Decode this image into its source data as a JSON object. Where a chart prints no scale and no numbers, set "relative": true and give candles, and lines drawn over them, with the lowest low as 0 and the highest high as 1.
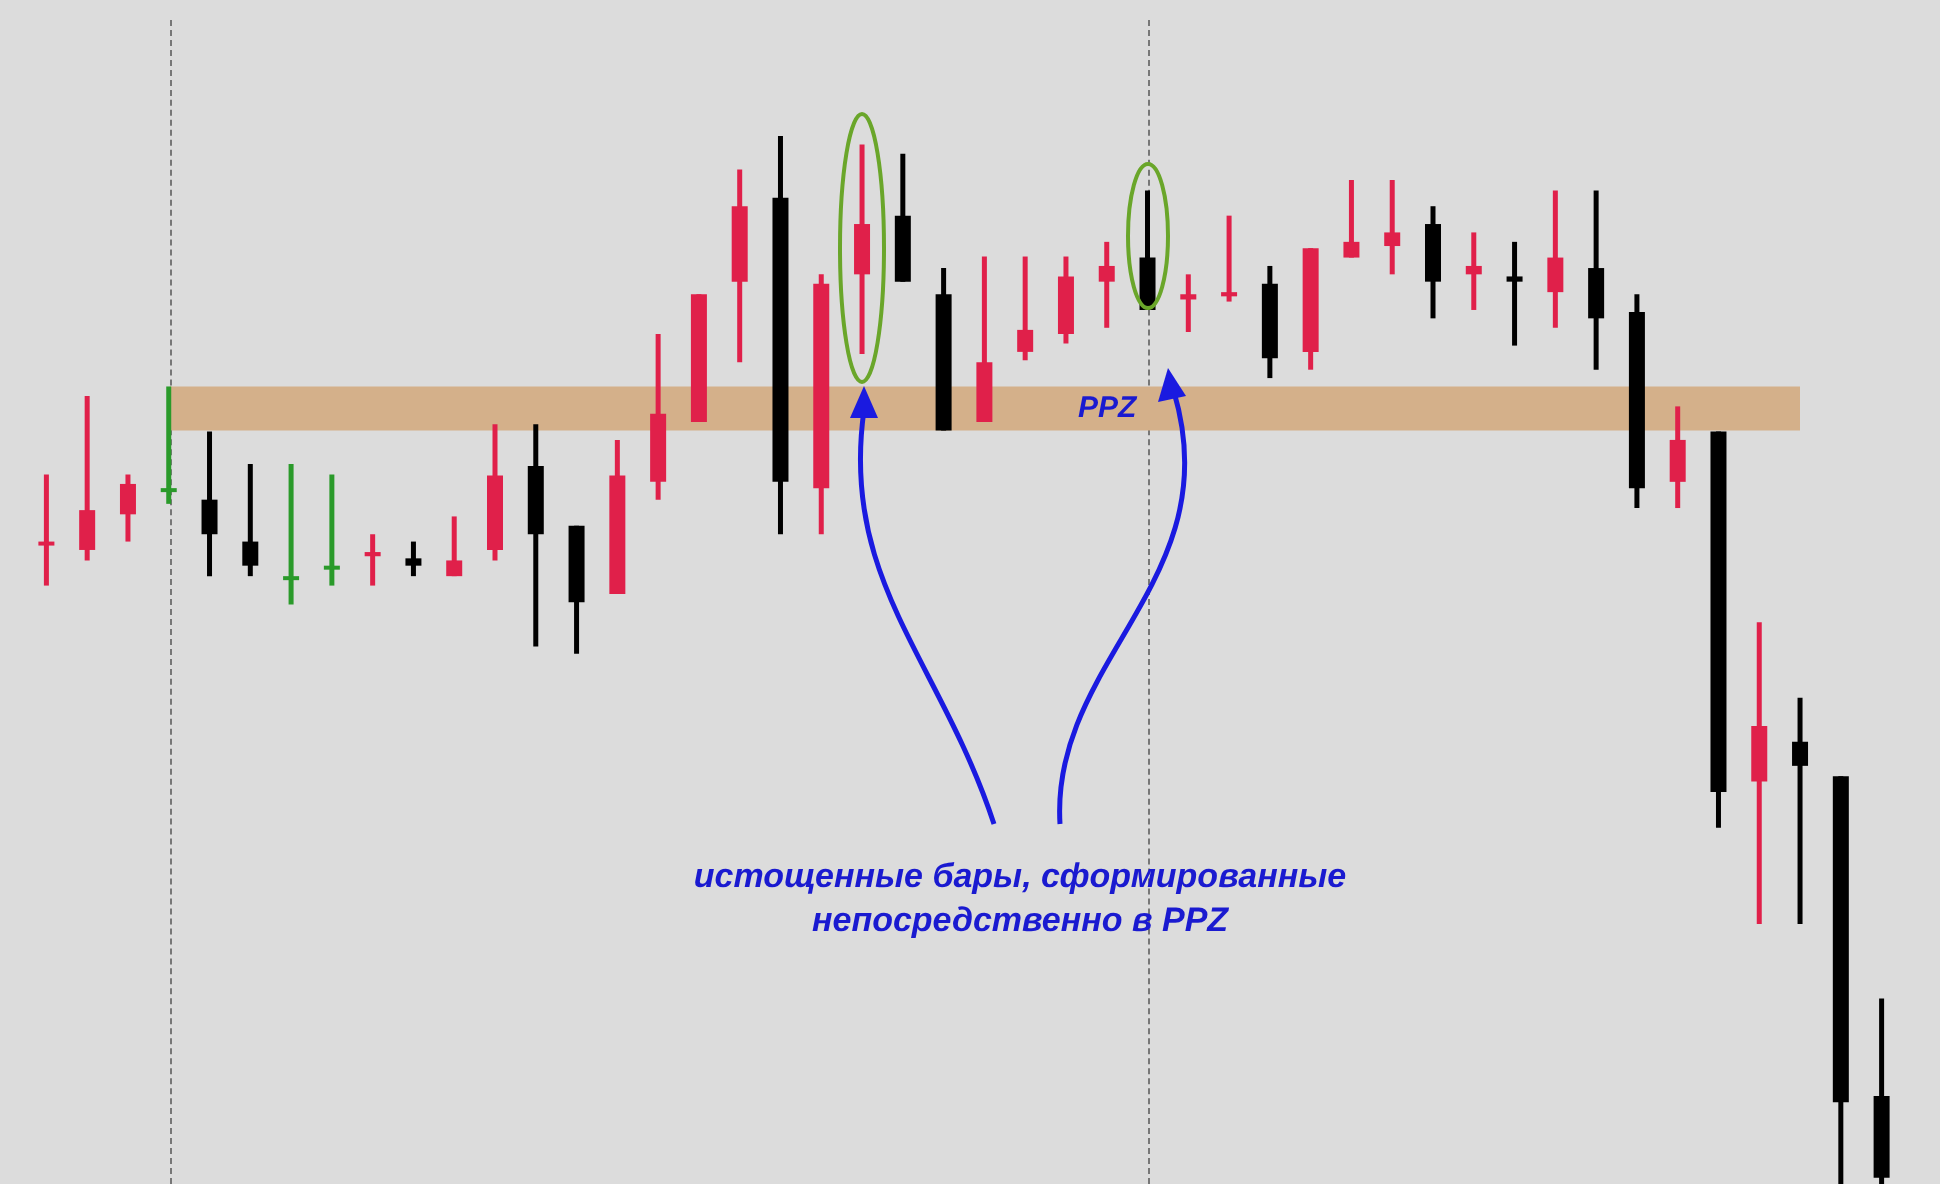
{
  "chart_data": {
    "type": "candlestick",
    "relative": true,
    "categories": [
      null,
      null,
      null,
      null,
      null,
      null,
      null,
      null,
      null,
      null,
      null,
      null,
      null,
      null,
      null,
      null,
      null,
      null,
      null,
      null,
      null,
      null,
      null,
      null,
      null,
      null,
      null,
      null,
      null,
      null,
      null,
      null,
      null,
      null,
      null,
      null,
      null,
      null,
      null,
      null,
      null,
      null,
      null,
      null,
      null,
      null
    ],
    "ohlc": [
      [
        0.611,
        0.677,
        0.571,
        0.613
      ],
      [
        0.605,
        0.752,
        0.595,
        0.643
      ],
      [
        0.639,
        0.677,
        0.613,
        0.668
      ],
      [
        0.664,
        0.761,
        0.649,
        0.664
      ],
      [
        0.653,
        0.718,
        0.58,
        0.62
      ],
      [
        0.613,
        0.687,
        0.58,
        0.59
      ],
      [
        0.58,
        0.687,
        0.553,
        0.58
      ],
      [
        0.59,
        0.677,
        0.571,
        0.59
      ],
      [
        0.599,
        0.62,
        0.571,
        0.603
      ],
      [
        0.597,
        0.613,
        0.58,
        0.59
      ],
      [
        0.58,
        0.637,
        0.58,
        0.595
      ],
      [
        0.605,
        0.725,
        0.595,
        0.676
      ],
      [
        0.685,
        0.725,
        0.513,
        0.62
      ],
      [
        0.628,
        0.628,
        0.506,
        0.555
      ],
      [
        0.563,
        0.71,
        0.563,
        0.676
      ],
      [
        0.67,
        0.811,
        0.653,
        0.735
      ],
      [
        0.727,
        0.849,
        0.727,
        0.849
      ],
      [
        0.861,
        0.968,
        0.784,
        0.933
      ],
      [
        0.941,
        1,
        0.62,
        0.67
      ],
      [
        0.664,
        0.868,
        0.62,
        0.859
      ],
      [
        0.868,
        0.992,
        0.792,
        0.916
      ],
      [
        0.924,
        0.983,
        0.861,
        0.861
      ],
      [
        0.849,
        0.874,
        0.719,
        0.719
      ],
      [
        0.727,
        0.885,
        0.727,
        0.784
      ],
      [
        0.794,
        0.885,
        0.786,
        0.815
      ],
      [
        0.811,
        0.885,
        0.802,
        0.866
      ],
      [
        0.861,
        0.899,
        0.817,
        0.876
      ],
      [
        0.884,
        0.948,
        0.834,
        0.834
      ],
      [
        0.844,
        0.868,
        0.813,
        0.849
      ],
      [
        0.847,
        0.924,
        0.842,
        0.851
      ],
      [
        0.859,
        0.876,
        0.769,
        0.788
      ],
      [
        0.794,
        0.893,
        0.777,
        0.893
      ],
      [
        0.884,
        0.958,
        0.884,
        0.899
      ],
      [
        0.895,
        0.958,
        0.868,
        0.908
      ],
      [
        0.916,
        0.933,
        0.826,
        0.861
      ],
      [
        0.868,
        0.908,
        0.834,
        0.876
      ],
      [
        0.866,
        0.899,
        0.8,
        0.861
      ],
      [
        0.851,
        0.948,
        0.817,
        0.884
      ],
      [
        0.874,
        0.948,
        0.777,
        0.826
      ],
      [
        0.832,
        0.849,
        0.645,
        0.664
      ],
      [
        0.67,
        0.742,
        0.645,
        0.71
      ],
      [
        0.718,
        0.718,
        0.34,
        0.374
      ],
      [
        0.384,
        0.536,
        0.248,
        0.437
      ],
      [
        0.422,
        0.464,
        0.248,
        0.399
      ],
      [
        0.389,
        0.389,
        0,
        0.078
      ],
      [
        0.084,
        0.177,
        0,
        0.006
      ]
    ],
    "colors": [
      "#e0204a",
      "#e0204a",
      "#e0204a",
      "#2a9a2a",
      "#000000",
      "#000000",
      "#2a9a2a",
      "#2a9a2a",
      "#e0204a",
      "#000000",
      "#e0204a",
      "#e0204a",
      "#000000",
      "#000000",
      "#e0204a",
      "#e0204a",
      "#e0204a",
      "#e0204a",
      "#000000",
      "#e0204a",
      "#e0204a",
      "#000000",
      "#000000",
      "#e0204a",
      "#e0204a",
      "#e0204a",
      "#e0204a",
      "#000000",
      "#e0204a",
      "#e0204a",
      "#000000",
      "#e0204a",
      "#e0204a",
      "#e0204a",
      "#000000",
      "#e0204a",
      "#000000",
      "#e0204a",
      "#000000",
      "#000000",
      "#e0204a",
      "#000000",
      "#e0204a",
      "#000000",
      "#000000",
      "#000000"
    ],
    "bands": [
      {
        "axis": "y",
        "from": 0.719,
        "to": 0.761,
        "label": "PPZ",
        "color": "#d4b08a"
      }
    ],
    "annotations": [
      "истощенные бары, сформированные непосредственно в PPZ"
    ],
    "legend": false
  }
}
